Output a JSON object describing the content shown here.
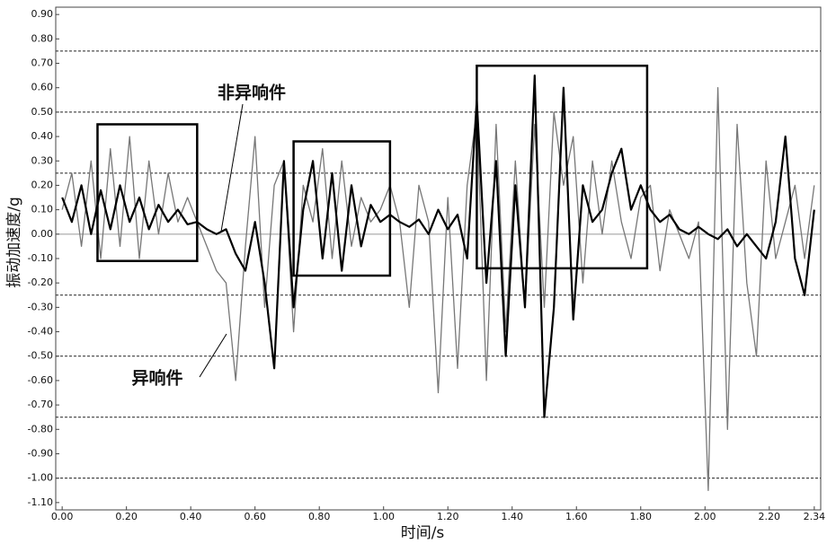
{
  "chart_data": {
    "type": "line",
    "x_label": "时间/s",
    "y_label": "振动加速度/g",
    "xlim": [
      -0.02,
      2.36
    ],
    "ylim": [
      -1.13,
      0.93
    ],
    "xticks": [
      {
        "value": 0,
        "label": "0.00"
      },
      {
        "value": 0.2,
        "label": "0.20"
      },
      {
        "value": 0.4,
        "label": "0.40"
      },
      {
        "value": 0.6,
        "label": "0.60"
      },
      {
        "value": 0.8,
        "label": "0.80"
      },
      {
        "value": 1,
        "label": "1.00"
      },
      {
        "value": 1.2,
        "label": "1.20"
      },
      {
        "value": 1.4,
        "label": "1.40"
      },
      {
        "value": 1.6,
        "label": "1.60"
      },
      {
        "value": 1.8,
        "label": "1.80"
      },
      {
        "value": 2,
        "label": "2.00"
      },
      {
        "value": 2.2,
        "label": "2.20"
      },
      {
        "value": 2.34,
        "label": "2.34"
      }
    ],
    "yticks": [
      {
        "value": 0.9,
        "label": "0.90"
      },
      {
        "value": 0.8,
        "label": "0.80"
      },
      {
        "value": 0.7,
        "label": "0.70"
      },
      {
        "value": 0.6,
        "label": "0.60"
      },
      {
        "value": 0.5,
        "label": "0.50"
      },
      {
        "value": 0.4,
        "label": "0.40"
      },
      {
        "value": 0.3,
        "label": "0.30"
      },
      {
        "value": 0.2,
        "label": "0.20"
      },
      {
        "value": 0.1,
        "label": "0.10"
      },
      {
        "value": 0,
        "label": "0.00"
      },
      {
        "value": -0.1,
        "label": "-0.10"
      },
      {
        "value": -0.2,
        "label": "-0.20"
      },
      {
        "value": -0.3,
        "label": "-0.30"
      },
      {
        "value": -0.4,
        "label": "-0.40"
      },
      {
        "value": -0.5,
        "label": "-0.50"
      },
      {
        "value": -0.6,
        "label": "-0.60"
      },
      {
        "value": -0.7,
        "label": "-0.70"
      },
      {
        "value": -0.8,
        "label": "-0.80"
      },
      {
        "value": -0.9,
        "label": "-0.90"
      },
      {
        "value": -1,
        "label": "-1.00"
      },
      {
        "value": -1.1,
        "label": "-1.10"
      }
    ],
    "reference_lines": [
      0.75,
      0.5,
      0.25,
      -0.25,
      -0.5,
      -0.75,
      -1
    ],
    "highlight_boxes": [
      {
        "x": [
          0.11,
          0.42
        ],
        "y": [
          -0.11,
          0.45
        ]
      },
      {
        "x": [
          0.72,
          1.02
        ],
        "y": [
          -0.17,
          0.38
        ]
      },
      {
        "x": [
          1.29,
          1.82
        ],
        "y": [
          -0.14,
          0.69
        ]
      }
    ],
    "x": [
      0,
      0.03,
      0.06,
      0.09,
      0.12,
      0.15,
      0.18,
      0.21,
      0.24,
      0.27,
      0.3,
      0.33,
      0.36,
      0.39,
      0.42,
      0.45,
      0.48,
      0.51,
      0.54,
      0.57,
      0.6,
      0.63,
      0.66,
      0.69,
      0.72,
      0.75,
      0.78,
      0.81,
      0.84,
      0.87,
      0.9,
      0.93,
      0.96,
      0.99,
      1.02,
      1.05,
      1.08,
      1.11,
      1.14,
      1.17,
      1.2,
      1.23,
      1.26,
      1.29,
      1.32,
      1.35,
      1.38,
      1.41,
      1.44,
      1.47,
      1.5,
      1.53,
      1.56,
      1.59,
      1.62,
      1.65,
      1.68,
      1.71,
      1.74,
      1.77,
      1.8,
      1.83,
      1.86,
      1.89,
      1.92,
      1.95,
      1.98,
      2.01,
      2.04,
      2.07,
      2.1,
      2.13,
      2.16,
      2.19,
      2.22,
      2.25,
      2.28,
      2.31,
      2.34
    ],
    "series": [
      {
        "name": "异响件",
        "color": "#777777",
        "width": 1.3,
        "values": [
          0.1,
          0.25,
          -0.05,
          0.3,
          -0.1,
          0.35,
          -0.05,
          0.4,
          -0.1,
          0.3,
          0.0,
          0.25,
          0.05,
          0.15,
          0.05,
          -0.05,
          -0.15,
          -0.2,
          -0.6,
          -0.05,
          0.4,
          -0.3,
          0.2,
          0.3,
          -0.4,
          0.2,
          0.05,
          0.35,
          -0.1,
          0.3,
          -0.05,
          0.15,
          0.05,
          0.1,
          0.2,
          0.05,
          -0.3,
          0.2,
          0.05,
          -0.65,
          0.15,
          -0.55,
          0.2,
          0.5,
          -0.6,
          0.45,
          -0.4,
          0.3,
          -0.3,
          0.45,
          -0.3,
          0.5,
          0.2,
          0.4,
          -0.2,
          0.3,
          0.0,
          0.3,
          0.05,
          -0.1,
          0.15,
          0.2,
          -0.15,
          0.1,
          0.0,
          -0.1,
          0.05,
          -1.05,
          0.6,
          -0.8,
          0.45,
          -0.2,
          -0.5,
          0.3,
          -0.1,
          0.05,
          0.2,
          -0.1,
          0.2
        ]
      },
      {
        "name": "非异响件",
        "color": "#000000",
        "width": 2.2,
        "values": [
          0.15,
          0.05,
          0.2,
          0.0,
          0.18,
          0.02,
          0.2,
          0.05,
          0.15,
          0.02,
          0.12,
          0.05,
          0.1,
          0.04,
          0.05,
          0.02,
          0.0,
          0.02,
          -0.08,
          -0.15,
          0.05,
          -0.2,
          -0.55,
          0.3,
          -0.3,
          0.1,
          0.3,
          -0.1,
          0.25,
          -0.15,
          0.2,
          -0.05,
          0.12,
          0.05,
          0.08,
          0.05,
          0.03,
          0.06,
          0.0,
          0.1,
          0.02,
          0.08,
          -0.1,
          0.55,
          -0.2,
          0.3,
          -0.5,
          0.2,
          -0.3,
          0.65,
          -0.75,
          -0.3,
          0.6,
          -0.35,
          0.2,
          0.05,
          0.1,
          0.25,
          0.35,
          0.1,
          0.2,
          0.1,
          0.05,
          0.08,
          0.02,
          0.0,
          0.03,
          0.0,
          -0.02,
          0.02,
          -0.05,
          0.0,
          -0.05,
          -0.1,
          0.05,
          0.4,
          -0.1,
          -0.25,
          0.1
        ]
      }
    ]
  }
}
